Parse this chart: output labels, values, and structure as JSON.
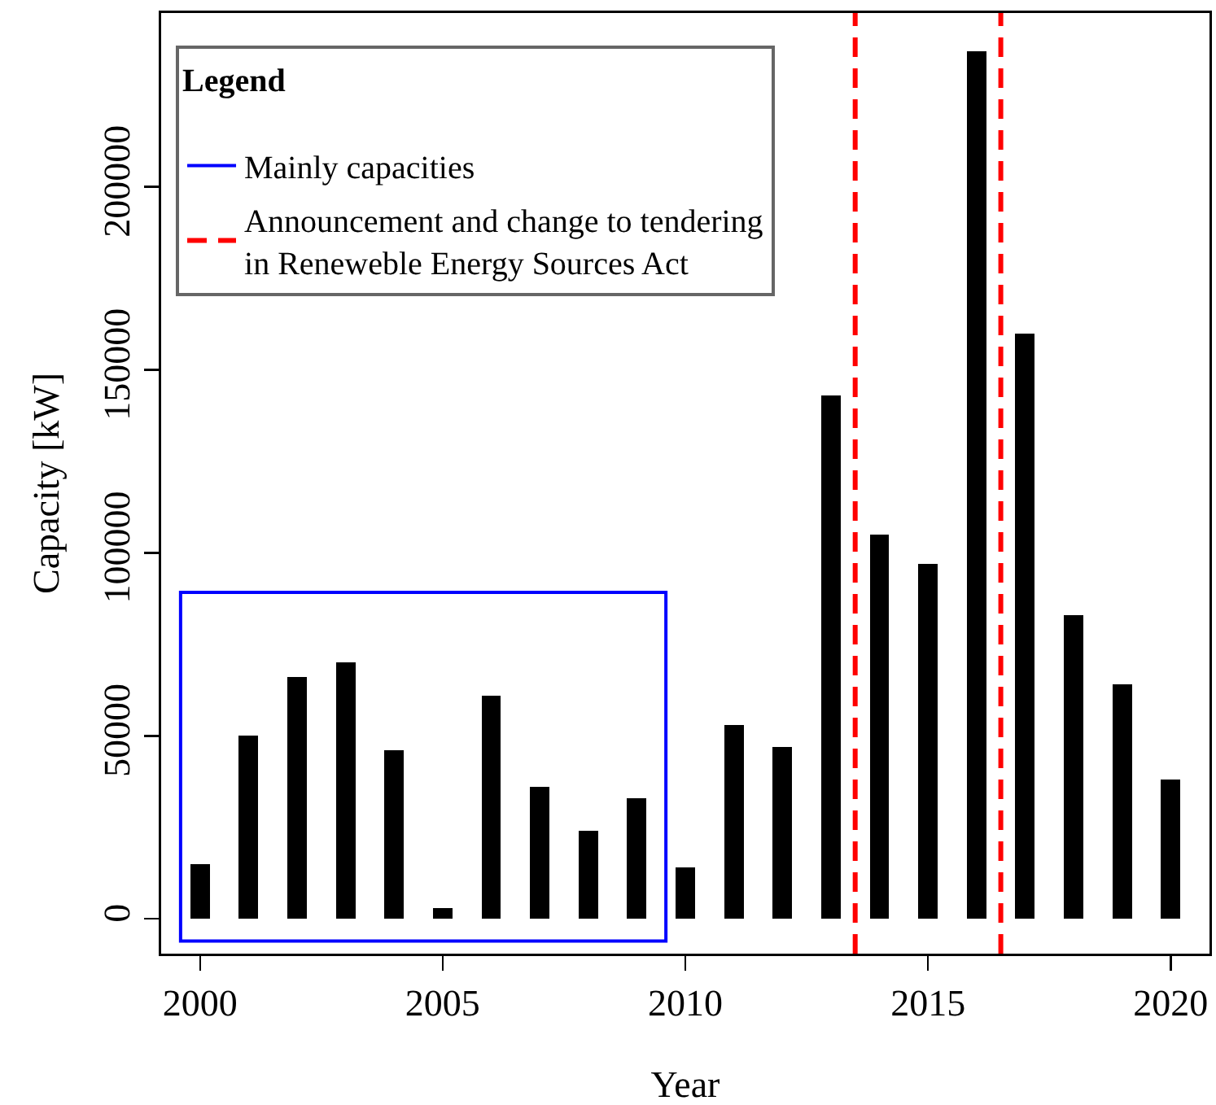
{
  "chart_data": {
    "type": "bar",
    "xlabel": "Year",
    "ylabel": "Capacity [kW]",
    "legend_title": "Legend",
    "x": [
      2000,
      2001,
      2002,
      2003,
      2004,
      2005,
      2006,
      2007,
      2008,
      2009,
      2010,
      2011,
      2012,
      2013,
      2014,
      2015,
      2016,
      2017,
      2018,
      2019,
      2020
    ],
    "values": [
      15000,
      50000,
      66000,
      70000,
      46000,
      3000,
      61000,
      36000,
      24000,
      33000,
      14000,
      53000,
      47000,
      143000,
      105000,
      97000,
      237000,
      160000,
      83000,
      64000,
      38000
    ],
    "color": "#000000",
    "xlim": [
      1999.2,
      2020.8
    ],
    "xticks": [
      2000,
      2005,
      2010,
      2015,
      2020
    ],
    "ylim": [
      -9500,
      247500
    ],
    "yticks": [
      0,
      50000,
      100000,
      150000,
      200000
    ],
    "bands": [
      {
        "axis": "x",
        "from": 1999.6,
        "to": 2009.6,
        "label": "Mainly capacities",
        "color": "#0000ff"
      }
    ],
    "ref_lines": [
      {
        "axis": "x",
        "value": 2013.5,
        "label": "Announcement and change to tendering in Reneweble Energy Sources Act",
        "color": "#ff0000",
        "line_style": "dashed"
      },
      {
        "axis": "x",
        "value": 2016.5,
        "color": "#ff0000",
        "line_style": "dashed"
      }
    ],
    "legend": "top left"
  }
}
